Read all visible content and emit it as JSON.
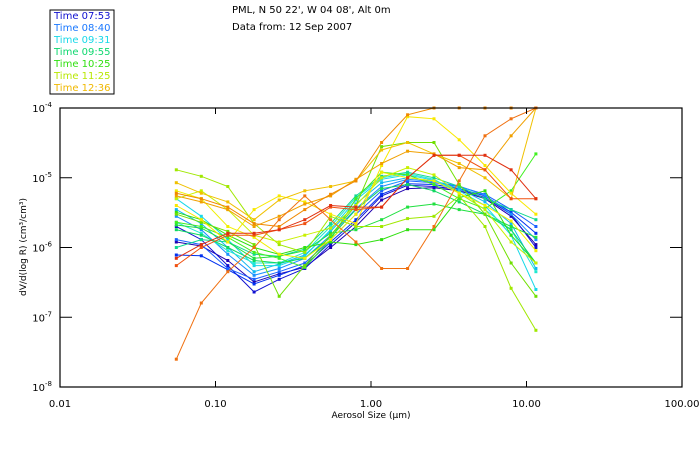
{
  "header": {
    "title_line1": "PML, N 50 22', W 04 08', Alt 0m",
    "title_line2": "Data from: 12 Sep 2007"
  },
  "legend": {
    "placement": "top-left",
    "items": [
      {
        "label": "Time 07:53",
        "color": "#1010d0"
      },
      {
        "label": "Time 08:40",
        "color": "#1a78ff"
      },
      {
        "label": "Time 09:31",
        "color": "#18d8e8"
      },
      {
        "label": "Time 09:55",
        "color": "#10d870"
      },
      {
        "label": "Time 10:25",
        "color": "#30e010"
      },
      {
        "label": "Time 11:25",
        "color": "#b8e800"
      },
      {
        "label": "Time 12:36",
        "color": "#f0b800"
      }
    ]
  },
  "chart_data": {
    "type": "line",
    "title": "PML, N 50 22', W 04 08', Alt 0m",
    "subtitle": "Data from: 12 Sep 2007",
    "xlabel": "Aerosol Size (µm)",
    "ylabel": "dV/d(log R) (cm³/cm³)",
    "xscale": "log",
    "yscale": "log",
    "xlim": [
      0.01,
      100
    ],
    "ylim": [
      1e-08,
      0.0001
    ],
    "grid": false,
    "legend_placement": "top-left outside",
    "x_ticks": [
      {
        "value": 0.01,
        "label": "0.01"
      },
      {
        "value": 0.1,
        "label": "0.10"
      },
      {
        "value": 1,
        "label": "1.00"
      },
      {
        "value": 10,
        "label": "10.00"
      },
      {
        "value": 100,
        "label": "100.00"
      }
    ],
    "y_ticks": [
      {
        "value": 0.0001,
        "base": "10",
        "exp": "-4"
      },
      {
        "value": 1e-05,
        "base": "10",
        "exp": "-5"
      },
      {
        "value": 1e-06,
        "base": "10",
        "exp": "-6"
      },
      {
        "value": 1e-07,
        "base": "10",
        "exp": "-7"
      },
      {
        "value": 1e-08,
        "base": "10",
        "exp": "-8"
      }
    ],
    "x": [
      0.056,
      0.081,
      0.12,
      0.177,
      0.257,
      0.375,
      0.55,
      0.8,
      1.17,
      1.72,
      2.54,
      3.69,
      5.41,
      7.96,
      11.5
    ],
    "series": [
      {
        "name": "s01",
        "color": "#2000b0",
        "values": [
          1.2e-06,
          1.05e-06,
          6.5e-07,
          3.2e-07,
          4.2e-07,
          5.2e-07,
          1e-06,
          2e-06,
          4.8e-06,
          7e-06,
          7.2e-06,
          6.5e-06,
          5e-06,
          2.8e-06,
          1.1e-06
        ]
      },
      {
        "name": "s02",
        "color": "#1010d0",
        "values": [
          2e-06,
          1.3e-06,
          5.5e-07,
          2.3e-07,
          3.5e-07,
          5e-07,
          1.1e-06,
          2.3e-06,
          5.5e-06,
          7.8e-06,
          7.5e-06,
          6.8e-06,
          5.2e-06,
          3e-06,
          1e-06
        ]
      },
      {
        "name": "s03",
        "color": "#0030f0",
        "values": [
          7.8e-07,
          7.6e-07,
          4.8e-07,
          3e-07,
          4e-07,
          5.5e-07,
          1.2e-06,
          2.5e-06,
          5.8e-06,
          8.2e-06,
          8e-06,
          7e-06,
          5.5e-06,
          3.2e-06,
          1.6e-06
        ]
      },
      {
        "name": "s04",
        "color": "#1a60ff",
        "values": [
          1.3e-06,
          1.1e-06,
          5e-07,
          3.5e-07,
          4.5e-07,
          6e-07,
          1.3e-06,
          3e-06,
          6.5e-06,
          9e-06,
          8.5e-06,
          7.5e-06,
          5.8e-06,
          3.5e-06,
          2e-06
        ]
      },
      {
        "name": "s05",
        "color": "#1a90ff",
        "values": [
          2.8e-06,
          1.8e-06,
          8e-07,
          4e-07,
          5e-07,
          7e-07,
          1.5e-06,
          3.6e-06,
          7.5e-06,
          9.5e-06,
          8.8e-06,
          7.6e-06,
          5.6e-06,
          3e-06,
          1.3e-06
        ]
      },
      {
        "name": "s06",
        "color": "#10b8f0",
        "values": [
          3.5e-06,
          2.2e-06,
          1e-06,
          4.5e-07,
          5.8e-07,
          7.8e-07,
          1.7e-06,
          4.2e-06,
          8.5e-06,
          1e-05,
          9e-06,
          7e-06,
          4.5e-06,
          2.2e-06,
          5e-07
        ]
      },
      {
        "name": "s07",
        "color": "#18d8e8",
        "values": [
          5e-06,
          2.8e-06,
          1.3e-06,
          5.5e-07,
          5.5e-07,
          7.5e-07,
          1.8e-06,
          4.8e-06,
          9.5e-06,
          1.1e-05,
          9.2e-06,
          6.5e-06,
          4e-06,
          1.5e-06,
          2.5e-07
        ]
      },
      {
        "name": "s08",
        "color": "#20e8d0",
        "values": [
          2.3e-06,
          1.6e-06,
          9e-07,
          6e-07,
          6e-07,
          8.5e-07,
          2e-06,
          5.2e-06,
          1e-05,
          1.15e-05,
          9.5e-06,
          6e-06,
          3.5e-06,
          1.8e-06,
          4.5e-07
        ]
      },
      {
        "name": "s09",
        "color": "#10d890",
        "values": [
          1e-06,
          1.3e-06,
          1.2e-06,
          8e-07,
          7.5e-07,
          9.5e-07,
          2.2e-06,
          5.5e-06,
          1.05e-05,
          1.2e-05,
          1e-05,
          7.5e-06,
          5e-06,
          3.5e-06,
          2.5e-06
        ]
      },
      {
        "name": "s10",
        "color": "#10d860",
        "values": [
          1.8e-06,
          1.5e-06,
          1e-06,
          6.5e-07,
          6e-07,
          7e-07,
          1.4e-06,
          3.5e-06,
          7e-06,
          8e-06,
          6.5e-06,
          4.5e-06,
          3e-06,
          1.8e-06,
          6e-07
        ]
      },
      {
        "name": "s11",
        "color": "#20e040",
        "values": [
          2.1e-06,
          1.9e-06,
          1.2e-06,
          7e-07,
          7.5e-07,
          9e-07,
          1.6e-06,
          1.8e-06,
          2.5e-06,
          3.8e-06,
          4.2e-06,
          3.5e-06,
          3e-06,
          2e-06,
          1.4e-06
        ]
      },
      {
        "name": "s12",
        "color": "#30e010",
        "values": [
          3.2e-06,
          2.5e-06,
          1.5e-06,
          1e-06,
          8e-07,
          1e-06,
          1.2e-06,
          1.1e-06,
          1.3e-06,
          1.8e-06,
          1.8e-06,
          5.2e-06,
          6.5e-06,
          1.5e-06,
          6e-07
        ]
      },
      {
        "name": "s13",
        "color": "#40f020",
        "values": [
          2.3e-06,
          2e-06,
          1.4e-06,
          8.5e-07,
          7e-07,
          5.2e-07,
          1.3e-06,
          5e-06,
          1.2e-05,
          1.1e-05,
          8e-06,
          5e-06,
          3.6e-06,
          6.5e-06,
          2.2e-05
        ]
      },
      {
        "name": "s14",
        "color": "#70e000",
        "values": [
          3e-06,
          2.3e-06,
          1.7e-06,
          1.1e-06,
          2e-07,
          5.5e-07,
          1.5e-06,
          4e-06,
          2.8e-05,
          3.2e-05,
          3.2e-05,
          8e-06,
          3e-06,
          6e-07,
          2e-07
        ]
      },
      {
        "name": "s15",
        "color": "#a0e800",
        "values": [
          1.3e-05,
          1.05e-05,
          7.5e-06,
          2.2e-06,
          1.1e-06,
          8.5e-07,
          2.8e-06,
          2e-06,
          2e-06,
          2.6e-06,
          2.8e-06,
          5.5e-06,
          2e-06,
          2.6e-07,
          6.5e-08
        ]
      },
      {
        "name": "s16",
        "color": "#c8f000",
        "values": [
          5e-06,
          6.5e-06,
          3.5e-06,
          1.5e-06,
          1.2e-06,
          1.5e-06,
          1.9e-06,
          4e-06,
          1e-05,
          1.4e-05,
          1.1e-05,
          6e-06,
          3.5e-06,
          1.2e-06,
          6e-07
        ]
      },
      {
        "name": "s17",
        "color": "#f0f000",
        "values": [
          6.5e-06,
          5e-06,
          2e-06,
          1.4e-06,
          8e-07,
          7e-07,
          1.3e-06,
          3e-06,
          1.2e-05,
          1e-05,
          9e-06,
          6e-06,
          4e-06,
          2.4e-06,
          9e-07
        ]
      },
      {
        "name": "s18",
        "color": "#f8e800",
        "values": [
          4e-06,
          2.5e-06,
          1.2e-06,
          3.5e-06,
          5.5e-06,
          4.5e-06,
          3e-06,
          2.2e-06,
          1.5e-05,
          7.5e-05,
          7e-05,
          3.5e-05,
          1.5e-05,
          6e-06,
          3e-06
        ]
      },
      {
        "name": "s19",
        "color": "#f0c000",
        "values": [
          8.5e-06,
          6e-06,
          4.5e-06,
          2.5e-06,
          4.8e-06,
          6.5e-06,
          7.5e-06,
          9e-06,
          2.5e-05,
          3.2e-05,
          2.2e-05,
          1.6e-05,
          1e-05,
          5e-06,
          0.0001
        ]
      },
      {
        "name": "s20",
        "color": "#f0a000",
        "values": [
          5.5e-06,
          4.5e-06,
          3.5e-06,
          2e-06,
          2.8e-06,
          4.2e-06,
          5.5e-06,
          9.5e-06,
          1.6e-05,
          2.4e-05,
          2.2e-05,
          1.4e-05,
          1.3e-05,
          4e-05,
          0.0001
        ]
      },
      {
        "name": "s21",
        "color": "#f08800",
        "values": [
          6e-06,
          5e-06,
          3.8e-06,
          2.2e-06,
          2e-06,
          3.5e-06,
          5.8e-06,
          9e-06,
          3.2e-05,
          8e-05,
          0.0001,
          0.0001,
          0.0001,
          0.0001,
          0.0001
        ]
      },
      {
        "name": "s22",
        "color": "#f07010",
        "values": [
          2.5e-08,
          1.6e-07,
          4.5e-07,
          1e-06,
          2.5e-06,
          5.5e-06,
          2.5e-06,
          1.2e-06,
          5e-07,
          5e-07,
          2e-06,
          9e-06,
          4e-05,
          7e-05,
          0.0001
        ]
      },
      {
        "name": "s23",
        "color": "#f05010",
        "values": [
          5.5e-07,
          1e-06,
          1.5e-06,
          1.5e-06,
          1.8e-06,
          2.2e-06,
          3.8e-06,
          3.5e-06,
          3.8e-06,
          1e-05,
          2.1e-05,
          2.1e-05,
          1.3e-05,
          5e-06,
          5e-06
        ]
      },
      {
        "name": "s24",
        "color": "#e03010",
        "values": [
          7e-07,
          1.1e-06,
          1.6e-06,
          1.6e-06,
          1.8e-06,
          2.5e-06,
          4e-06,
          3.8e-06,
          3.8e-06,
          1e-05,
          2.1e-05,
          2.1e-05,
          2.1e-05,
          1.3e-05,
          5e-06
        ]
      }
    ]
  }
}
